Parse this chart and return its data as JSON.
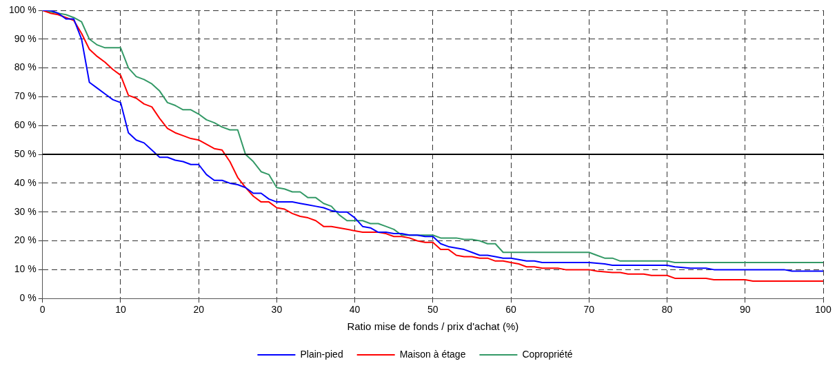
{
  "chart_data": {
    "type": "line",
    "xlabel": "Ratio mise de fonds / prix d'achat (%)",
    "xlim": [
      0,
      100
    ],
    "xticks": [
      0,
      10,
      20,
      30,
      40,
      50,
      60,
      70,
      80,
      90,
      100
    ],
    "ylim": [
      0,
      100
    ],
    "yticks": [
      {
        "value": 0,
        "label": "0 %"
      },
      {
        "value": 10,
        "label": "10 %"
      },
      {
        "value": 20,
        "label": "20 %"
      },
      {
        "value": 30,
        "label": "30 %"
      },
      {
        "value": 40,
        "label": "40 %"
      },
      {
        "value": 50,
        "label": "50 %"
      },
      {
        "value": 60,
        "label": "60 %"
      },
      {
        "value": 70,
        "label": "70 %"
      },
      {
        "value": 80,
        "label": "80 %"
      },
      {
        "value": 90,
        "label": "90 %"
      },
      {
        "value": 100,
        "label": "100 %"
      }
    ],
    "grid": true,
    "legend": "bottom",
    "marker": "none",
    "line_style": "solid",
    "ref_lines": [
      {
        "axis": "y",
        "value": 50,
        "color": "#000000"
      }
    ],
    "series": [
      {
        "name": "Plain-pied",
        "color": "#0000ff",
        "x": [
          0,
          1,
          2,
          3,
          4,
          5,
          6,
          7,
          8,
          9,
          10,
          11,
          12,
          13,
          14,
          15,
          16,
          17,
          18,
          19,
          20,
          21,
          22,
          23,
          24,
          25,
          26,
          27,
          28,
          29,
          30,
          31,
          32,
          33,
          34,
          35,
          36,
          37,
          38,
          39,
          40,
          41,
          42,
          43,
          44,
          45,
          46,
          47,
          48,
          49,
          50,
          51,
          52,
          53,
          54,
          55,
          56,
          57,
          58,
          59,
          60,
          61,
          62,
          63,
          64,
          70,
          72,
          73,
          74,
          80,
          81,
          83,
          85,
          86,
          95,
          96,
          100
        ],
        "values": [
          100,
          100,
          99,
          97,
          97,
          90,
          75,
          73,
          71,
          69,
          68,
          57.5,
          55,
          54,
          51.5,
          49,
          49,
          48,
          47.5,
          46.5,
          46.5,
          43,
          41,
          41,
          40,
          39.5,
          38.5,
          36.5,
          36.5,
          34.5,
          33.5,
          33.5,
          33.5,
          33,
          32.5,
          32,
          31.5,
          30.5,
          30,
          30,
          28,
          25,
          24.5,
          23,
          23,
          22.5,
          22.5,
          22,
          22,
          21.5,
          21.5,
          19,
          18,
          17.5,
          17,
          16,
          15,
          15,
          14.5,
          14,
          14,
          13.5,
          13,
          13,
          12.5,
          12.5,
          12,
          11.5,
          11.5,
          11.5,
          11,
          10.5,
          10.5,
          10,
          10,
          9.5,
          9.5
        ]
      },
      {
        "name": "Maison à étage",
        "color": "#ff0000",
        "x": [
          0,
          1,
          2,
          3,
          4,
          5,
          6,
          7,
          8,
          9,
          10,
          11,
          12,
          13,
          14,
          15,
          16,
          17,
          18,
          19,
          20,
          21,
          22,
          23,
          24,
          25,
          26,
          27,
          28,
          29,
          30,
          31,
          32,
          33,
          34,
          35,
          36,
          37,
          38,
          39,
          40,
          41,
          42,
          43,
          44,
          45,
          46,
          47,
          48,
          49,
          50,
          51,
          52,
          53,
          54,
          55,
          56,
          57,
          58,
          59,
          60,
          61,
          62,
          63,
          64,
          66,
          67,
          70,
          71,
          73,
          74,
          75,
          77,
          78,
          80,
          81,
          85,
          86,
          90,
          91,
          100
        ],
        "values": [
          100,
          99,
          98.5,
          97.5,
          96.5,
          92,
          86.5,
          84,
          82,
          79.5,
          77.5,
          70.5,
          69.5,
          67.5,
          66.5,
          62.5,
          59,
          57.5,
          56.5,
          55.5,
          55,
          53.5,
          52,
          51.5,
          47.5,
          42,
          38.5,
          35.5,
          33.5,
          33.5,
          31.5,
          31,
          29.5,
          28.5,
          28,
          27,
          25,
          25,
          24.5,
          24,
          23.5,
          23,
          23,
          23,
          22.5,
          21.5,
          21.5,
          21,
          20,
          19.5,
          19.5,
          17,
          17,
          15,
          14.5,
          14.5,
          14,
          14,
          13,
          13,
          12.5,
          12,
          11,
          11,
          10.5,
          10.5,
          10,
          10,
          9.5,
          9,
          9,
          8.5,
          8.5,
          8,
          8,
          7,
          7,
          6.5,
          6.5,
          6,
          6
        ]
      },
      {
        "name": "Copropriété",
        "color": "#339966",
        "x": [
          0,
          2,
          3,
          4,
          5,
          6,
          7,
          8,
          9,
          10,
          11,
          12,
          13,
          14,
          15,
          16,
          17,
          18,
          19,
          20,
          21,
          22,
          23,
          24,
          25,
          26,
          27,
          28,
          29,
          30,
          31,
          32,
          33,
          34,
          35,
          36,
          37,
          38,
          39,
          40,
          41,
          42,
          43,
          44,
          45,
          46,
          50,
          51,
          52,
          53,
          54,
          55,
          56,
          57,
          58,
          59,
          70,
          71,
          72,
          73,
          74,
          80,
          81,
          100
        ],
        "values": [
          100,
          99,
          98.5,
          97.5,
          96,
          90,
          88,
          87,
          87,
          87,
          80,
          77,
          76,
          74.5,
          72,
          68,
          67,
          65.5,
          65.5,
          64,
          62,
          61,
          59.5,
          58.5,
          58.5,
          50,
          47.5,
          44,
          43,
          38.5,
          38,
          37,
          37,
          35,
          35,
          33,
          32,
          29,
          27,
          27,
          27,
          26,
          26,
          25,
          24,
          22,
          22,
          21,
          21,
          21,
          20.5,
          20.5,
          20,
          19,
          19,
          16,
          16,
          15,
          14,
          14,
          13,
          13,
          12.5,
          12.5
        ]
      }
    ]
  }
}
